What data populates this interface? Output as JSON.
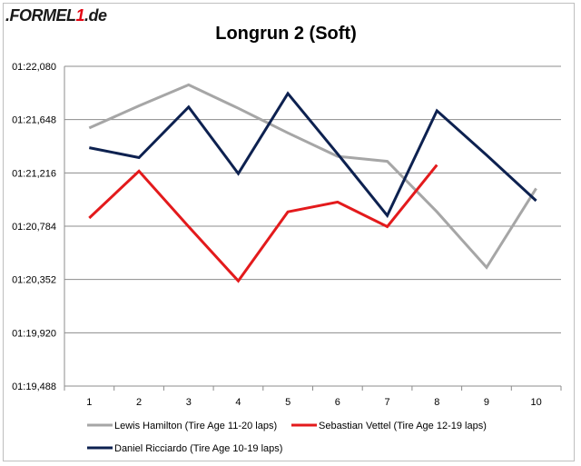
{
  "logo": {
    "prefix": ".FORMEL",
    "one": "1",
    "suffix": ".de"
  },
  "chart_data": {
    "type": "line",
    "title": "Longrun 2 (Soft)",
    "xlabel": "",
    "ylabel": "",
    "x": [
      1,
      2,
      3,
      4,
      5,
      6,
      7,
      8,
      9,
      10
    ],
    "ylim": [
      79.488,
      82.08
    ],
    "yticks": [
      {
        "value": 82.08,
        "label": "01:22,080"
      },
      {
        "value": 81.648,
        "label": "01:21,648"
      },
      {
        "value": 81.216,
        "label": "01:21,216"
      },
      {
        "value": 80.784,
        "label": "01:20,784"
      },
      {
        "value": 80.352,
        "label": "01:20,352"
      },
      {
        "value": 79.92,
        "label": "01:19,920"
      },
      {
        "value": 79.488,
        "label": "01:19,488"
      }
    ],
    "grid": true,
    "legend_position": "bottom",
    "series": [
      {
        "name": "Lewis Hamilton (Tire Age 11-20 laps)",
        "color": "#a6a6a6",
        "x": [
          1,
          2,
          3,
          4,
          5,
          6,
          7,
          8,
          9,
          10
        ],
        "values": [
          81.58,
          81.76,
          81.93,
          81.74,
          81.54,
          81.35,
          81.31,
          80.9,
          80.45,
          81.09
        ]
      },
      {
        "name": "Sebastian Vettel (Tire Age 12-19 laps)",
        "color": "#e31a1c",
        "x": [
          1,
          2,
          3,
          4,
          5,
          6,
          7,
          8
        ],
        "values": [
          80.85,
          81.23,
          80.78,
          80.34,
          80.9,
          80.98,
          80.78,
          81.28
        ]
      },
      {
        "name": "Daniel Ricciardo (Tire Age 10-19 laps)",
        "color": "#0d2150",
        "x": [
          1,
          2,
          3,
          4,
          5,
          6,
          7,
          8,
          9,
          10
        ],
        "values": [
          81.42,
          81.34,
          81.75,
          81.21,
          81.86,
          81.37,
          80.87,
          81.72,
          81.36,
          80.99
        ]
      }
    ]
  }
}
